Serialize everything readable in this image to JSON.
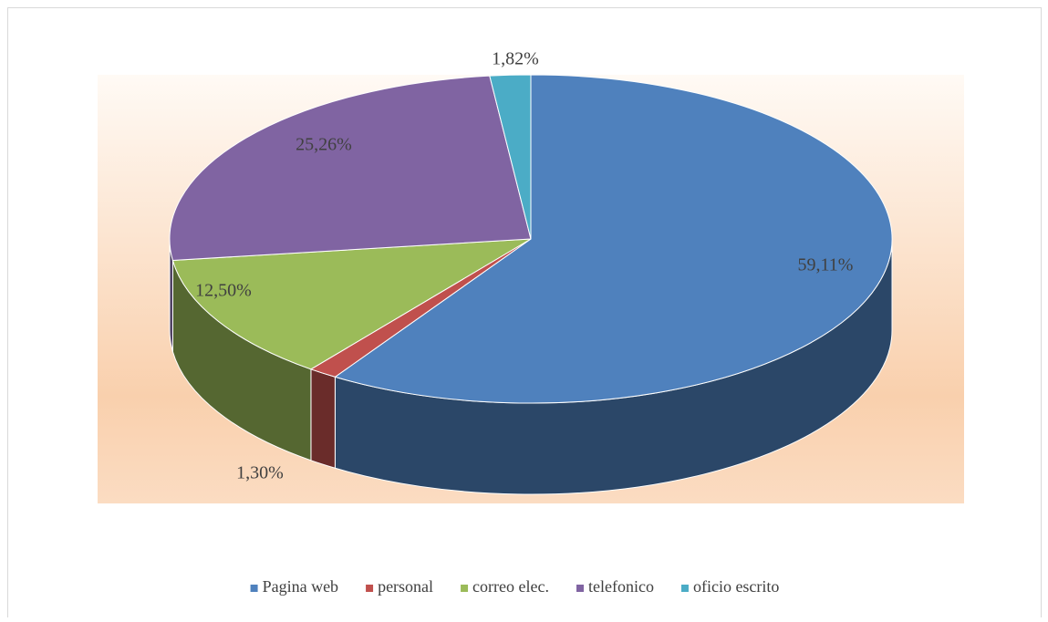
{
  "chart_data": {
    "type": "pie3d",
    "categories": [
      "Pagina web",
      "personal",
      "correo elec.",
      "telefonico",
      "oficio escrito"
    ],
    "values": [
      59.11,
      1.3,
      12.5,
      25.26,
      1.82
    ],
    "value_labels": [
      "59,11%",
      "1,30%",
      "12,50%",
      "25,26%",
      "1,82%"
    ],
    "colors": [
      "#4f81bd",
      "#c0504d",
      "#9bbb59",
      "#8064a2",
      "#4bacc6"
    ],
    "legend": "bottom"
  }
}
